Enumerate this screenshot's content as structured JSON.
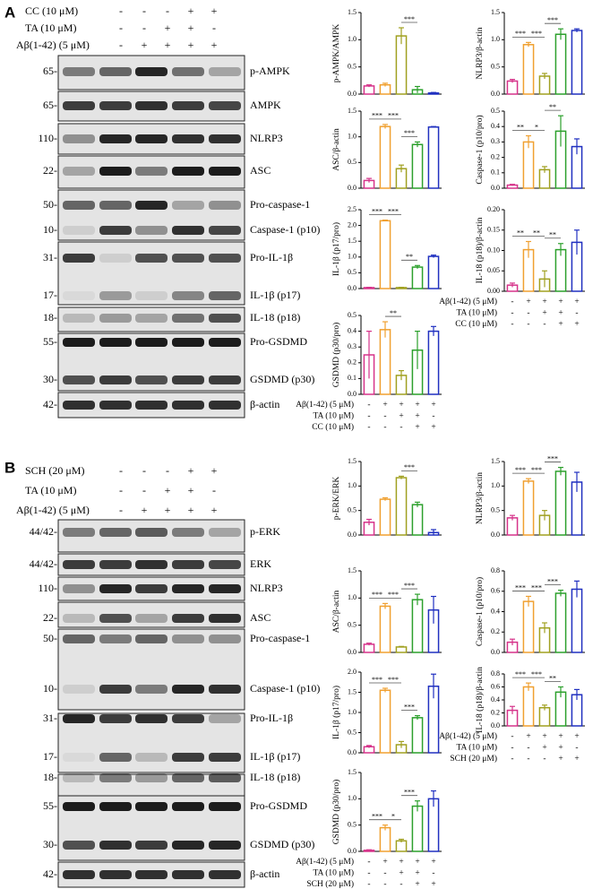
{
  "panels": [
    {
      "letter": "A",
      "treatments": [
        {
          "label": "CC (10 μM)",
          "signs": [
            "-",
            "-",
            "-",
            "+",
            "+"
          ]
        },
        {
          "label": "TA (10 μM)",
          "signs": [
            "-",
            "-",
            "+",
            "+",
            "-"
          ]
        },
        {
          "label": "Aβ(1-42) (5 μM)",
          "signs": [
            "-",
            "+",
            "+",
            "+",
            "+"
          ]
        }
      ],
      "blots": [
        {
          "markers": [
            "65-"
          ],
          "proteins": [
            "p-AMPK"
          ]
        },
        {
          "markers": [
            "65-"
          ],
          "proteins": [
            "AMPK"
          ]
        },
        {
          "markers": [
            "110-"
          ],
          "proteins": [
            "NLRP3"
          ]
        },
        {
          "markers": [
            "22-"
          ],
          "proteins": [
            "ASC"
          ]
        },
        {
          "markers": [
            "50-",
            "10-"
          ],
          "proteins": [
            "Pro-caspase-1",
            "Caspase-1 (p10)"
          ]
        },
        {
          "markers": [
            "31-",
            "17-"
          ],
          "proteins": [
            "Pro-IL-1β",
            "IL-1β (p17)"
          ]
        },
        {
          "markers": [
            "18-"
          ],
          "proteins": [
            "IL-18 (p18)"
          ]
        },
        {
          "markers": [
            "55-",
            "30-"
          ],
          "proteins": [
            "Pro-GSDMD",
            "GSDMD (p30)"
          ]
        },
        {
          "markers": [
            "42-"
          ],
          "proteins": [
            "β-actin"
          ]
        }
      ],
      "conditions": [
        {
          "label": "Aβ(1-42) (5 μM)",
          "signs": [
            "-",
            "+",
            "+",
            "+",
            "+"
          ]
        },
        {
          "label": "TA (10 μM)",
          "signs": [
            "-",
            "-",
            "+",
            "+",
            "-"
          ]
        },
        {
          "label": "CC (10 μM)",
          "signs": [
            "-",
            "-",
            "-",
            "+",
            "+"
          ]
        }
      ]
    },
    {
      "letter": "B",
      "treatments": [
        {
          "label": "SCH (20 μM)",
          "signs": [
            "-",
            "-",
            "-",
            "+",
            "+"
          ]
        },
        {
          "label": "TA (10 μM)",
          "signs": [
            "-",
            "-",
            "+",
            "+",
            "-"
          ]
        },
        {
          "label": "Aβ(1-42) (5 μM)",
          "signs": [
            "-",
            "+",
            "+",
            "+",
            "+"
          ]
        }
      ],
      "blots": [
        {
          "markers": [
            "44/42-"
          ],
          "proteins": [
            "p-ERK"
          ]
        },
        {
          "markers": [
            "44/42-"
          ],
          "proteins": [
            "ERK"
          ]
        },
        {
          "markers": [
            "110-"
          ],
          "proteins": [
            "NLRP3"
          ]
        },
        {
          "markers": [
            "22-"
          ],
          "proteins": [
            "ASC"
          ]
        },
        {
          "markers": [
            "50-",
            "10-"
          ],
          "proteins": [
            "Pro-caspase-1",
            "Caspase-1 (p10)"
          ]
        },
        {
          "markers": [
            "31-",
            "17-"
          ],
          "proteins": [
            "Pro-IL-1β",
            "IL-1β (p17)"
          ]
        },
        {
          "markers": [
            "18-"
          ],
          "proteins": [
            "IL-18 (p18)"
          ]
        },
        {
          "markers": [
            "55-",
            "30-"
          ],
          "proteins": [
            "Pro-GSDMD",
            "GSDMD (p30)"
          ]
        },
        {
          "markers": [
            "42-"
          ],
          "proteins": [
            "β-actin"
          ]
        }
      ],
      "conditions": [
        {
          "label": "Aβ(1-42) (5 μM)",
          "signs": [
            "-",
            "+",
            "+",
            "+",
            "+"
          ]
        },
        {
          "label": "TA (10 μM)",
          "signs": [
            "-",
            "-",
            "+",
            "+",
            "-"
          ]
        },
        {
          "label": "SCH (20 μM)",
          "signs": [
            "-",
            "-",
            "-",
            "+",
            "+"
          ]
        }
      ]
    }
  ],
  "chart_data": [
    {
      "type": "bar",
      "ylabel": "p-AMPK/AMPK",
      "ylim": [
        0,
        1.5
      ],
      "yticks": [
        {
          "value": 0,
          "label": "0.0"
        },
        0.5,
        {
          "value": 1,
          "label": "1.0"
        },
        1.5
      ],
      "values": [
        0.15,
        0.17,
        1.07,
        0.08,
        0.02
      ],
      "errors": [
        0.02,
        0.03,
        0.15,
        0.06,
        0.01
      ],
      "significance": [
        null,
        null,
        "***",
        null
      ],
      "colors": [
        "#d6338a",
        "#f0a030",
        "#a0a020",
        "#2ca02c",
        "#2030c0"
      ]
    },
    {
      "type": "bar",
      "ylabel": "NLRP3/β-actin",
      "ylim": [
        0,
        1.5
      ],
      "yticks": [
        {
          "value": 0,
          "label": "0.0"
        },
        0.5,
        {
          "value": 1,
          "label": "1.0"
        },
        1.5
      ],
      "values": [
        0.24,
        0.91,
        0.33,
        1.1,
        1.17
      ],
      "errors": [
        0.03,
        0.04,
        0.05,
        0.1,
        0.03
      ],
      "significance": [
        "***",
        "***",
        "***",
        null
      ],
      "colors": [
        "#d6338a",
        "#f0a030",
        "#a0a020",
        "#2ca02c",
        "#2030c0"
      ]
    },
    {
      "type": "bar",
      "ylabel": "ASC/β-actin",
      "ylim": [
        0,
        1.5
      ],
      "yticks": [
        {
          "value": 0,
          "label": "0.0"
        },
        0.5,
        {
          "value": 1,
          "label": "1.0"
        },
        1.5
      ],
      "values": [
        0.15,
        1.2,
        0.38,
        0.85,
        1.19
      ],
      "errors": [
        0.04,
        0.04,
        0.07,
        0.05,
        0.01
      ],
      "significance": [
        "***",
        "***",
        "***",
        null
      ],
      "colors": [
        "#d6338a",
        "#f0a030",
        "#a0a020",
        "#2ca02c",
        "#2030c0"
      ]
    },
    {
      "type": "bar",
      "ylabel": "Caspase-1 (p10/pro)",
      "ylim": [
        0,
        0.5
      ],
      "yticks": [
        {
          "value": 0,
          "label": "0.0"
        },
        0.1,
        0.2,
        0.3,
        0.4,
        0.5
      ],
      "values": [
        0.02,
        0.3,
        0.12,
        0.37,
        0.27
      ],
      "errors": [
        0.005,
        0.04,
        0.02,
        0.1,
        0.05
      ],
      "significance": [
        "**",
        "*",
        "**",
        null
      ],
      "colors": [
        "#d6338a",
        "#f0a030",
        "#a0a020",
        "#2ca02c",
        "#2030c0"
      ]
    },
    {
      "type": "bar",
      "ylabel": "IL-1β (p17/pro)",
      "ylim": [
        0,
        2.5
      ],
      "yticks": [
        {
          "value": 0,
          "label": "0.0"
        },
        0.5,
        {
          "value": 1,
          "label": "1.0"
        },
        1.5,
        {
          "value": 2,
          "label": "2.0"
        },
        2.5
      ],
      "values": [
        0.03,
        2.15,
        0.03,
        0.68,
        1.02
      ],
      "errors": [
        0.01,
        0.02,
        0.01,
        0.05,
        0.04
      ],
      "significance": [
        "***",
        "***",
        "**",
        null
      ],
      "colors": [
        "#d6338a",
        "#f0a030",
        "#a0a020",
        "#2ca02c",
        "#2030c0"
      ]
    },
    {
      "type": "bar",
      "ylabel": "IL-18 (p18)/β-actin",
      "ylim": [
        0,
        0.2
      ],
      "yticks": [
        {
          "value": 0,
          "label": "0.00"
        },
        0.05,
        {
          "value": 0.1,
          "label": "0.10"
        },
        0.15,
        {
          "value": 0.2,
          "label": "0.20"
        }
      ],
      "values": [
        0.015,
        0.102,
        0.03,
        0.102,
        0.12
      ],
      "errors": [
        0.005,
        0.02,
        0.02,
        0.015,
        0.03
      ],
      "significance": [
        "**",
        "**",
        "**",
        null
      ],
      "colors": [
        "#d6338a",
        "#f0a030",
        "#a0a020",
        "#2ca02c",
        "#2030c0"
      ]
    },
    {
      "type": "bar",
      "ylabel": "GSDMD (p30/pro)",
      "ylim": [
        0,
        0.5
      ],
      "yticks": [
        {
          "value": 0,
          "label": "0.0"
        },
        0.1,
        0.2,
        0.3,
        0.4,
        0.5
      ],
      "values": [
        0.25,
        0.41,
        0.12,
        0.28,
        0.4
      ],
      "errors": [
        0.15,
        0.05,
        0.03,
        0.12,
        0.03
      ],
      "significance": [
        null,
        "**",
        null,
        null
      ],
      "colors": [
        "#d6338a",
        "#f0a030",
        "#a0a020",
        "#2ca02c",
        "#2030c0"
      ]
    },
    {
      "type": "bar",
      "ylabel": "p-ERK/ERK",
      "ylim": [
        0,
        1.5
      ],
      "yticks": [
        {
          "value": 0,
          "label": "0.0"
        },
        0.5,
        {
          "value": 1,
          "label": "1.0"
        },
        1.5
      ],
      "values": [
        0.26,
        0.73,
        1.17,
        0.62,
        0.05
      ],
      "errors": [
        0.06,
        0.03,
        0.03,
        0.05,
        0.06
      ],
      "significance": [
        null,
        null,
        "***",
        null
      ],
      "colors": [
        "#d6338a",
        "#f0a030",
        "#a0a020",
        "#2ca02c",
        "#2030c0"
      ]
    },
    {
      "type": "bar",
      "ylabel": "NLRP3/β-actin",
      "ylim": [
        0,
        1.5
      ],
      "yticks": [
        {
          "value": 0,
          "label": "0.0"
        },
        0.5,
        {
          "value": 1,
          "label": "1.0"
        },
        1.5
      ],
      "values": [
        0.35,
        1.1,
        0.4,
        1.3,
        1.08
      ],
      "errors": [
        0.05,
        0.05,
        0.1,
        0.08,
        0.2
      ],
      "significance": [
        "***",
        "***",
        "***",
        null
      ],
      "colors": [
        "#d6338a",
        "#f0a030",
        "#a0a020",
        "#2ca02c",
        "#2030c0"
      ]
    },
    {
      "type": "bar",
      "ylabel": "ASC/β-actin",
      "ylim": [
        0,
        1.5
      ],
      "yticks": [
        {
          "value": 0,
          "label": "0.0"
        },
        0.5,
        {
          "value": 1,
          "label": "1.0"
        },
        1.5
      ],
      "values": [
        0.15,
        0.85,
        0.1,
        0.97,
        0.78
      ],
      "errors": [
        0.02,
        0.05,
        0.01,
        0.1,
        0.25
      ],
      "significance": [
        "***",
        "***",
        "***",
        null
      ],
      "colors": [
        "#d6338a",
        "#f0a030",
        "#a0a020",
        "#2ca02c",
        "#2030c0"
      ]
    },
    {
      "type": "bar",
      "ylabel": "Caspase-1 (p10/pro)",
      "ylim": [
        0,
        0.8
      ],
      "yticks": [
        {
          "value": 0,
          "label": "0.0"
        },
        0.2,
        0.4,
        0.6,
        0.8
      ],
      "values": [
        0.1,
        0.5,
        0.24,
        0.58,
        0.62
      ],
      "errors": [
        0.03,
        0.05,
        0.05,
        0.03,
        0.08
      ],
      "significance": [
        "***",
        "***",
        "***",
        null
      ],
      "colors": [
        "#d6338a",
        "#f0a030",
        "#a0a020",
        "#2ca02c",
        "#2030c0"
      ]
    },
    {
      "type": "bar",
      "ylabel": "IL-1β (p17/pro)",
      "ylim": [
        0,
        2
      ],
      "yticks": [
        {
          "value": 0,
          "label": "0.0"
        },
        0.5,
        {
          "value": 1,
          "label": "1.0"
        },
        1.5,
        {
          "value": 2,
          "label": "2.0"
        }
      ],
      "values": [
        0.15,
        1.55,
        0.2,
        0.87,
        1.65
      ],
      "errors": [
        0.03,
        0.05,
        0.08,
        0.05,
        0.3
      ],
      "significance": [
        "***",
        "***",
        "***",
        null
      ],
      "colors": [
        "#d6338a",
        "#f0a030",
        "#a0a020",
        "#2ca02c",
        "#2030c0"
      ]
    },
    {
      "type": "bar",
      "ylabel": "IL-18 (p18)/β-actin",
      "ylim": [
        0,
        0.8
      ],
      "yticks": [
        {
          "value": 0,
          "label": "0.0"
        },
        0.2,
        0.4,
        0.6,
        0.8
      ],
      "values": [
        0.24,
        0.6,
        0.28,
        0.52,
        0.48
      ],
      "errors": [
        0.06,
        0.06,
        0.04,
        0.08,
        0.08
      ],
      "significance": [
        "***",
        "***",
        "**",
        null
      ],
      "colors": [
        "#d6338a",
        "#f0a030",
        "#a0a020",
        "#2ca02c",
        "#2030c0"
      ]
    },
    {
      "type": "bar",
      "ylabel": "GSDMD (p30/pro)",
      "ylim": [
        0,
        1.5
      ],
      "yticks": [
        {
          "value": 0,
          "label": "0.0"
        },
        0.5,
        {
          "value": 1,
          "label": "1.0"
        },
        1.5
      ],
      "values": [
        0.02,
        0.45,
        0.2,
        0.86,
        1.0
      ],
      "errors": [
        0.01,
        0.05,
        0.03,
        0.1,
        0.15
      ],
      "significance": [
        "***",
        "*",
        "***",
        null
      ],
      "colors": [
        "#d6338a",
        "#f0a030",
        "#a0a020",
        "#2ca02c",
        "#2030c0"
      ]
    }
  ]
}
